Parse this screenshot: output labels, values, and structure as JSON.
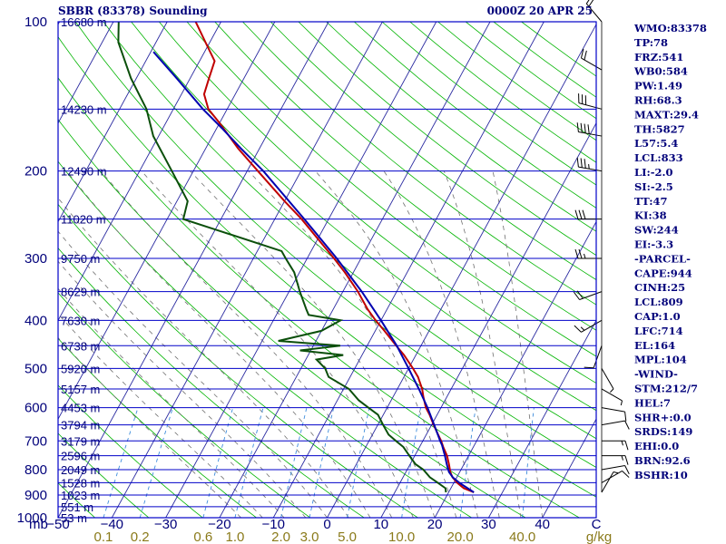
{
  "header": {
    "station": "SBBR (83378) Sounding",
    "time": "0000Z 20 APR 25"
  },
  "chart_data": {
    "type": "line",
    "title": "SBBR (83378) Sounding",
    "subtitle": "0000Z 20 APR 25",
    "xlabel_unit": "C",
    "mixing_ratio_unit": "g/kg",
    "pressure_unit": "mb",
    "pressure_range": [
      1000,
      100
    ],
    "temperature_range": [
      -50,
      50
    ],
    "pressure_ticks": [
      100,
      200,
      300,
      400,
      500,
      600,
      700,
      800,
      900,
      1000
    ],
    "temperature_ticks": [
      "−50",
      "−40",
      "−30",
      "−20",
      "−10",
      "0",
      "10",
      "20",
      "30",
      "40",
      "C"
    ],
    "mixing_ratio_ticks": [
      {
        "label": "0.1",
        "value": 0.1
      },
      {
        "label": "0.2",
        "value": 0.2
      },
      {
        "label": "0.6",
        "value": 0.6
      },
      {
        "label": "1.0",
        "value": 1.0
      },
      {
        "label": "2.0",
        "value": 2.0
      },
      {
        "label": "3.0",
        "value": 3.0
      },
      {
        "label": "5.0",
        "value": 5.0
      },
      {
        "label": "10.0",
        "value": 10.0
      },
      {
        "label": "20.0",
        "value": 20.0
      },
      {
        "label": "40.0",
        "value": 40.0
      }
    ],
    "heights": [
      {
        "p": 100,
        "label": "16680 m"
      },
      {
        "p": 150,
        "label": "14230 m"
      },
      {
        "p": 200,
        "label": "12490 m"
      },
      {
        "p": 250,
        "label": "11020 m"
      },
      {
        "p": 300,
        "label": "9750 m"
      },
      {
        "p": 350,
        "label": "8629 m"
      },
      {
        "p": 400,
        "label": "7630 m"
      },
      {
        "p": 450,
        "label": "6738 m"
      },
      {
        "p": 500,
        "label": "5920 m"
      },
      {
        "p": 550,
        "label": "5157 m"
      },
      {
        "p": 600,
        "label": "4453 m"
      },
      {
        "p": 650,
        "label": "3794 m"
      },
      {
        "p": 700,
        "label": "3179 m"
      },
      {
        "p": 750,
        "label": "2596 m"
      },
      {
        "p": 800,
        "label": "2049 m"
      },
      {
        "p": 850,
        "label": "1528 m"
      },
      {
        "p": 900,
        "label": "1023 m"
      },
      {
        "p": 950,
        "label": "551 m"
      },
      {
        "p": 1000,
        "label": "53 m"
      }
    ],
    "series": [
      {
        "name": "Temperature",
        "color": "#c00000",
        "points": [
          [
            889,
            24.7
          ],
          [
            872,
            22.4
          ],
          [
            850,
            20.6
          ],
          [
            829,
            19.2
          ],
          [
            810,
            18.3
          ],
          [
            780,
            17.2
          ],
          [
            750,
            16.0
          ],
          [
            720,
            14.4
          ],
          [
            700,
            13.4
          ],
          [
            680,
            12.2
          ],
          [
            650,
            10.4
          ],
          [
            620,
            8.6
          ],
          [
            600,
            7.2
          ],
          [
            570,
            5.6
          ],
          [
            550,
            4.6
          ],
          [
            520,
            2.6
          ],
          [
            500,
            0.8
          ],
          [
            470,
            -2.2
          ],
          [
            450,
            -4.6
          ],
          [
            420,
            -8.3
          ],
          [
            400,
            -11.0
          ],
          [
            380,
            -13.6
          ],
          [
            350,
            -17.2
          ],
          [
            320,
            -21.6
          ],
          [
            300,
            -25.0
          ],
          [
            270,
            -30.8
          ],
          [
            250,
            -35.0
          ],
          [
            230,
            -40.0
          ],
          [
            200,
            -48.0
          ],
          [
            180,
            -54.0
          ],
          [
            160,
            -60.0
          ],
          [
            150,
            -63.5
          ],
          [
            140,
            -65.8
          ],
          [
            130,
            -66.5
          ],
          [
            120,
            -67.2
          ],
          [
            110,
            -70.8
          ],
          [
            100,
            -74.7
          ]
        ]
      },
      {
        "name": "Dewpoint",
        "color": "#0b4f0b",
        "points": [
          [
            889,
            19.5
          ],
          [
            872,
            19.0
          ],
          [
            850,
            17.0
          ],
          [
            829,
            15.0
          ],
          [
            800,
            13.0
          ],
          [
            780,
            11.0
          ],
          [
            750,
            9.0
          ],
          [
            720,
            7.0
          ],
          [
            700,
            5.0
          ],
          [
            680,
            3.0
          ],
          [
            650,
            1.0
          ],
          [
            620,
            -1.0
          ],
          [
            600,
            -3.5
          ],
          [
            580,
            -6.0
          ],
          [
            550,
            -9.0
          ],
          [
            520,
            -14.0
          ],
          [
            500,
            -15.5
          ],
          [
            480,
            -18.0
          ],
          [
            470,
            -13.5
          ],
          [
            460,
            -22.0
          ],
          [
            450,
            -15.0
          ],
          [
            440,
            -27.0
          ],
          [
            420,
            -20.0
          ],
          [
            400,
            -17.5
          ],
          [
            390,
            -24.0
          ],
          [
            380,
            -25.0
          ],
          [
            350,
            -28.0
          ],
          [
            320,
            -31.0
          ],
          [
            300,
            -34.0
          ],
          [
            290,
            -35.5
          ],
          [
            250,
            -57.0
          ],
          [
            230,
            -58.0
          ],
          [
            200,
            -64.0
          ],
          [
            170,
            -71.0
          ],
          [
            150,
            -75.0
          ],
          [
            130,
            -81.0
          ],
          [
            110,
            -87.0
          ],
          [
            100,
            -89.0
          ]
        ]
      },
      {
        "name": "Parcel",
        "color": "#0000b0",
        "points": [
          [
            889,
            24.7
          ],
          [
            850,
            21.0
          ],
          [
            830,
            19.3
          ],
          [
            809,
            18.0
          ],
          [
            780,
            16.8
          ],
          [
            750,
            15.6
          ],
          [
            714,
            14.0
          ],
          [
            700,
            13.2
          ],
          [
            650,
            10.5
          ],
          [
            600,
            7.5
          ],
          [
            550,
            4.0
          ],
          [
            500,
            0.0
          ],
          [
            450,
            -4.5
          ],
          [
            400,
            -10.0
          ],
          [
            350,
            -16.5
          ],
          [
            300,
            -24.5
          ],
          [
            250,
            -34.5
          ],
          [
            200,
            -47.0
          ],
          [
            180,
            -53.5
          ],
          [
            164,
            -59.0
          ],
          [
            150,
            -64.5
          ],
          [
            130,
            -72.5
          ],
          [
            115,
            -79.5
          ]
        ]
      }
    ],
    "winds": [
      {
        "p": 889,
        "dir": 30,
        "spd": 5
      },
      {
        "p": 850,
        "dir": 60,
        "spd": 10
      },
      {
        "p": 800,
        "dir": 80,
        "spd": 12
      },
      {
        "p": 750,
        "dir": 90,
        "spd": 15
      },
      {
        "p": 700,
        "dir": 90,
        "spd": 15
      },
      {
        "p": 650,
        "dir": 80,
        "spd": 12
      },
      {
        "p": 600,
        "dir": 100,
        "spd": 10
      },
      {
        "p": 550,
        "dir": 120,
        "spd": 8
      },
      {
        "p": 500,
        "dir": 150,
        "spd": 8
      },
      {
        "p": 450,
        "dir": 200,
        "spd": 10
      },
      {
        "p": 400,
        "dir": 240,
        "spd": 15
      },
      {
        "p": 350,
        "dir": 250,
        "spd": 20
      },
      {
        "p": 300,
        "dir": 270,
        "spd": 25
      },
      {
        "p": 250,
        "dir": 270,
        "spd": 30
      },
      {
        "p": 200,
        "dir": 280,
        "spd": 35
      },
      {
        "p": 170,
        "dir": 280,
        "spd": 40
      },
      {
        "p": 150,
        "dir": 285,
        "spd": 30
      },
      {
        "p": 125,
        "dir": 300,
        "spd": 20
      },
      {
        "p": 100,
        "dir": 320,
        "spd": 20
      }
    ],
    "indices": [
      "WMO:83378",
      "TP:78",
      "FRZ:541",
      "WB0:584",
      "PW:1.49",
      "RH:68.3",
      "MAXT:29.4",
      "TH:5827",
      "L57:5.4",
      "LCL:833",
      "LI:-2.0",
      "SI:-2.5",
      "TT:47",
      "KI:38",
      "SW:244",
      "EI:-3.3",
      "-PARCEL-",
      "CAPE:944",
      "CINH:25",
      "LCL:809",
      "CAP:1.0",
      "LFC:714",
      "EL:164",
      "MPL:104",
      "-WIND-",
      "STM:212/7",
      "HEL:7",
      "SHR+:0.0",
      "SRDS:149",
      "EHI:0.0",
      "BRN:92.6",
      "BSHR:10"
    ],
    "colors": {
      "isobar": "#0000c8",
      "isotherm": "#2a2aa0",
      "dry_adiabat": "#00b400",
      "moist_adiabat": "#707070",
      "mixing_ratio": "#3c8cdc",
      "label": "#00007a",
      "mixing_label": "#8a7a1a"
    }
  }
}
